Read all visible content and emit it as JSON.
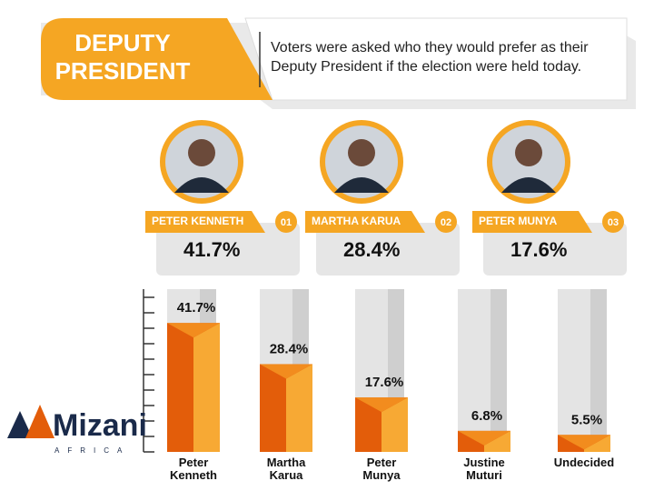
{
  "header": {
    "title": "DEPUTY PRESIDENT",
    "subtitle": "Voters were asked who they would prefer as their Deputy President if the election were held today."
  },
  "cards": [
    {
      "name": "PETER KENNETH",
      "number": "01"
    },
    {
      "name": "MARTHA KARUA",
      "number": "02"
    },
    {
      "name": "PETER MUNYA",
      "number": "03"
    }
  ],
  "logo": {
    "name": "Mizani",
    "sub": "AFRICA"
  },
  "chart_data": {
    "type": "bar",
    "categories": [
      "Peter Kenneth",
      "Martha Karua",
      "Peter Munya",
      "Justine Muturi",
      "Undecided"
    ],
    "values": [
      41.7,
      28.4,
      17.6,
      6.8,
      5.5
    ],
    "value_labels": [
      "41.7%",
      "28.4%",
      "17.6%",
      "6.8%",
      "5.5%"
    ],
    "color": "#e35d0a",
    "ylim": [
      0,
      50
    ],
    "yticks": [
      0,
      5,
      10,
      15,
      20,
      25,
      30,
      35,
      40,
      45,
      50
    ]
  }
}
